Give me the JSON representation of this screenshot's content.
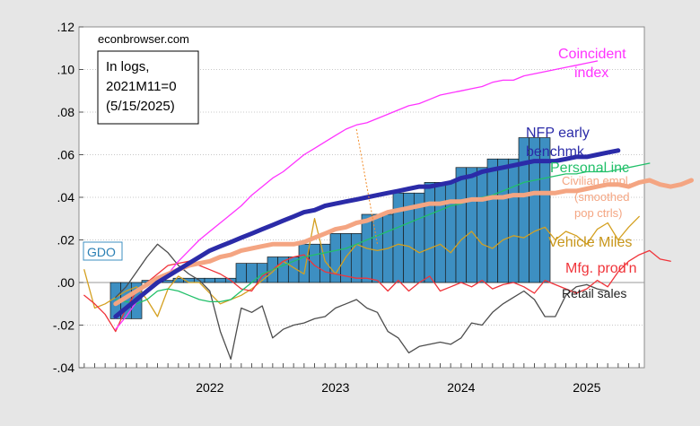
{
  "chart_data": {
    "type": "line",
    "source_label": "econbrowser.com",
    "note_lines": [
      "In logs,",
      "2021M11=0",
      "(5/15/2025)"
    ],
    "ylim": [
      -0.04,
      0.12
    ],
    "y_ticks": [
      ".12",
      ".10",
      ".08",
      ".06",
      ".04",
      ".02",
      ".00",
      "-.02",
      "-.04"
    ],
    "y_tick_values": [
      0.12,
      0.1,
      0.08,
      0.06,
      0.04,
      0.02,
      0.0,
      -0.02,
      -0.04
    ],
    "x_start": "2021-07",
    "x_end": "2025-12",
    "x_ticks": [
      {
        "label": "2022",
        "month": "2022-07"
      },
      {
        "label": "2023",
        "month": "2023-07"
      },
      {
        "label": "2024",
        "month": "2024-07"
      },
      {
        "label": "2025",
        "month": "2025-07"
      }
    ],
    "vline": {
      "from": [
        "2023-09",
        0.072
      ],
      "to": [
        "2023-11",
        0.018
      ],
      "color": "#f28c28"
    },
    "bars": {
      "name": "GDO",
      "color": "#3d8fc2",
      "start": "2021-10",
      "values": [
        -0.017,
        -0.017,
        -0.017,
        0.001,
        0.001,
        0.001,
        0.002,
        0.002,
        0.002,
        0.002,
        0.002,
        0.002,
        0.009,
        0.009,
        0.009,
        0.012,
        0.012,
        0.012,
        0.018,
        0.018,
        0.018,
        0.023,
        0.023,
        0.023,
        0.032,
        0.032,
        0.032,
        0.042,
        0.042,
        0.042,
        0.047,
        0.047,
        0.047,
        0.054,
        0.054,
        0.054,
        0.058,
        0.058,
        0.058,
        0.068,
        0.068,
        0.068
      ]
    },
    "series": [
      {
        "name": "Coincident index",
        "label_lines": [
          "Coincident",
          "index"
        ],
        "color": "#ff33ff",
        "width": 1.3,
        "start": "2021-10",
        "values": [
          -0.022,
          -0.016,
          -0.009,
          -0.004,
          0.0,
          0.004,
          0.01,
          0.015,
          0.02,
          0.024,
          0.028,
          0.032,
          0.036,
          0.041,
          0.045,
          0.049,
          0.052,
          0.056,
          0.06,
          0.063,
          0.066,
          0.069,
          0.072,
          0.074,
          0.075,
          0.077,
          0.079,
          0.081,
          0.083,
          0.084,
          0.086,
          0.088,
          0.089,
          0.09,
          0.091,
          0.092,
          0.094,
          0.095,
          0.095,
          0.097,
          0.098,
          0.099,
          0.1,
          0.101,
          0.102,
          0.103,
          0.104
        ]
      },
      {
        "name": "NFP early benchmk",
        "label_lines": [
          "NFP early",
          "benchmk"
        ],
        "color": "#2b2ba8",
        "width": 5,
        "start": "2021-10",
        "values": [
          -0.016,
          -0.012,
          -0.008,
          -0.004,
          0.0,
          0.003,
          0.006,
          0.009,
          0.012,
          0.015,
          0.017,
          0.019,
          0.021,
          0.023,
          0.025,
          0.027,
          0.029,
          0.031,
          0.033,
          0.034,
          0.036,
          0.037,
          0.038,
          0.039,
          0.04,
          0.041,
          0.042,
          0.043,
          0.044,
          0.045,
          0.045,
          0.046,
          0.047,
          0.049,
          0.05,
          0.052,
          0.053,
          0.054,
          0.055,
          0.056,
          0.057,
          0.057,
          0.057,
          0.058,
          0.059,
          0.059,
          0.06,
          0.061,
          0.062
        ]
      },
      {
        "name": "Personal inc",
        "label_lines": [
          "Personal inc"
        ],
        "color": "#22c06a",
        "width": 1.3,
        "start": "2021-10",
        "values": [
          -0.008,
          -0.009,
          -0.01,
          -0.008,
          -0.004,
          -0.003,
          -0.004,
          -0.006,
          -0.008,
          -0.009,
          -0.009,
          -0.008,
          -0.004,
          0.0,
          0.004,
          0.006,
          0.008,
          0.01,
          0.012,
          0.013,
          0.014,
          0.015,
          0.016,
          0.018,
          0.02,
          0.022,
          0.024,
          0.026,
          0.028,
          0.03,
          0.032,
          0.034,
          0.036,
          0.037,
          0.039,
          0.04,
          0.041,
          0.043,
          0.045,
          0.047,
          0.048,
          0.049,
          0.05,
          0.051,
          0.051,
          0.052,
          0.052,
          0.052,
          0.053,
          0.054,
          0.055,
          0.056
        ]
      },
      {
        "name": "Civilian empl. (smoothed pop ctrls)",
        "label_lines": [
          "Civilian empl.",
          "(smoothed",
          "pop ctrls)"
        ],
        "color": "#f4a582",
        "width": 5,
        "start": "2021-10",
        "values": [
          -0.01,
          -0.007,
          -0.004,
          -0.001,
          0.002,
          0.004,
          0.006,
          0.008,
          0.009,
          0.01,
          0.012,
          0.013,
          0.015,
          0.016,
          0.017,
          0.018,
          0.018,
          0.018,
          0.019,
          0.021,
          0.023,
          0.025,
          0.026,
          0.028,
          0.029,
          0.031,
          0.033,
          0.034,
          0.035,
          0.036,
          0.037,
          0.037,
          0.038,
          0.038,
          0.039,
          0.039,
          0.04,
          0.04,
          0.041,
          0.041,
          0.042,
          0.042,
          0.042,
          0.043,
          0.043,
          0.044,
          0.045,
          0.046,
          0.046,
          0.045,
          0.047,
          0.048,
          0.046,
          0.045,
          0.046,
          0.048
        ]
      },
      {
        "name": "Vehicle Miles",
        "label_lines": [
          "Vehicle Miles"
        ],
        "color": "#d4a020",
        "width": 1.3,
        "start": "2021-07",
        "values": [
          0.006,
          -0.012,
          -0.01,
          -0.007,
          -0.004,
          -0.002,
          -0.008,
          -0.016,
          -0.003,
          0.003,
          0.0,
          0.0,
          -0.005,
          -0.01,
          -0.008,
          -0.006,
          -0.003,
          0.001,
          0.005,
          0.01,
          0.007,
          0.004,
          0.03,
          0.01,
          0.004,
          0.012,
          0.018,
          0.016,
          0.015,
          0.016,
          0.018,
          0.017,
          0.014,
          0.016,
          0.018,
          0.014,
          0.02,
          0.024,
          0.018,
          0.016,
          0.02,
          0.022,
          0.021,
          0.024,
          0.026,
          0.02,
          0.024,
          0.022,
          0.018,
          0.025,
          0.028,
          0.02,
          0.026,
          0.031
        ]
      },
      {
        "name": "Mfg. prod'n",
        "label_lines": [
          "Mfg. prod'n"
        ],
        "color": "#f0343a",
        "width": 1.3,
        "start": "2021-07",
        "values": [
          -0.006,
          -0.01,
          -0.015,
          -0.023,
          -0.012,
          -0.004,
          0.0,
          0.004,
          0.008,
          0.009,
          0.01,
          0.008,
          0.006,
          0.004,
          0.001,
          -0.003,
          -0.004,
          0.003,
          0.006,
          0.01,
          0.012,
          0.013,
          0.008,
          0.005,
          0.004,
          0.003,
          0.002,
          0.002,
          0.001,
          -0.004,
          0.001,
          -0.004,
          0.0,
          0.003,
          -0.004,
          -0.002,
          0.0,
          -0.002,
          0.001,
          -0.003,
          -0.001,
          0.0,
          -0.002,
          -0.005,
          0.001,
          -0.001,
          -0.003,
          -0.005,
          -0.003,
          0.001,
          -0.002,
          0.005,
          0.01,
          0.013,
          0.015,
          0.011,
          0.01
        ]
      },
      {
        "name": "Retail sales",
        "label_lines": [
          "Retail sales"
        ],
        "color": "#4d4d4d",
        "width": 1.3,
        "start": "2021-10",
        "values": [
          -0.007,
          -0.002,
          0.005,
          0.012,
          0.018,
          0.014,
          0.008,
          0.004,
          0.001,
          -0.004,
          -0.023,
          -0.036,
          -0.012,
          -0.014,
          -0.011,
          -0.026,
          -0.022,
          -0.02,
          -0.019,
          -0.017,
          -0.016,
          -0.012,
          -0.01,
          -0.008,
          -0.012,
          -0.014,
          -0.023,
          -0.026,
          -0.033,
          -0.03,
          -0.029,
          -0.028,
          -0.029,
          -0.026,
          -0.019,
          -0.02,
          -0.014,
          -0.01,
          -0.007,
          -0.004,
          -0.008,
          -0.016,
          -0.016,
          -0.006,
          -0.002,
          -0.001,
          -0.003,
          -0.004
        ]
      }
    ]
  }
}
